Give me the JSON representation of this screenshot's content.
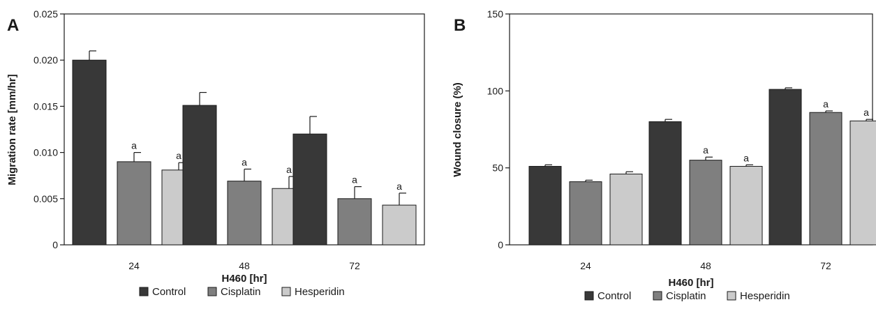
{
  "chart_data": [
    {
      "panel_label": "A",
      "type": "bar",
      "xlabel": "H460 [hr]",
      "ylabel": "Migration rate [mm/hr]",
      "categories": [
        "24",
        "48",
        "72"
      ],
      "ylim": [
        0,
        0.025
      ],
      "yticks": [
        "0",
        "0.005",
        "0.010",
        "0.015",
        "0.020",
        "0.025"
      ],
      "ytick_values": [
        0,
        0.005,
        0.01,
        0.015,
        0.02,
        0.025
      ],
      "grid": false,
      "legend_position": "bottom",
      "series": [
        {
          "name": "Control",
          "color": "#383838",
          "values": [
            0.02,
            0.0151,
            0.012
          ],
          "errors": [
            0.001,
            0.0014,
            0.0019
          ],
          "labels": [
            "",
            "",
            ""
          ]
        },
        {
          "name": "Cisplatin",
          "color": "#7f7f7f",
          "values": [
            0.009,
            0.0069,
            0.005
          ],
          "errors": [
            0.001,
            0.0013,
            0.0013
          ],
          "labels": [
            "a",
            "a",
            "a"
          ]
        },
        {
          "name": "Hesperidin",
          "color": "#cbcbcb",
          "values": [
            0.0081,
            0.0061,
            0.0043
          ],
          "errors": [
            0.0008,
            0.0013,
            0.0013
          ],
          "labels": [
            "a",
            "a",
            "a"
          ]
        }
      ]
    },
    {
      "panel_label": "B",
      "type": "bar",
      "xlabel": "H460 [hr]",
      "ylabel": "Wound closure (%)",
      "categories": [
        "24",
        "48",
        "72"
      ],
      "ylim": [
        0,
        150
      ],
      "yticks": [
        "0",
        "50",
        "100",
        "150"
      ],
      "ytick_values": [
        0,
        50,
        100,
        150
      ],
      "grid": false,
      "legend_position": "bottom",
      "series": [
        {
          "name": "Control",
          "color": "#383838",
          "values": [
            51,
            80,
            101
          ],
          "errors": [
            1,
            1.5,
            1
          ],
          "labels": [
            "",
            "",
            ""
          ]
        },
        {
          "name": "Cisplatin",
          "color": "#7f7f7f",
          "values": [
            41,
            55,
            86
          ],
          "errors": [
            1,
            2,
            1
          ],
          "labels": [
            "",
            "a",
            "a"
          ]
        },
        {
          "name": "Hesperidin",
          "color": "#cbcbcb",
          "values": [
            46,
            51,
            80.5
          ],
          "errors": [
            1.5,
            1,
            1
          ],
          "labels": [
            "",
            "a",
            "a"
          ]
        }
      ]
    }
  ]
}
